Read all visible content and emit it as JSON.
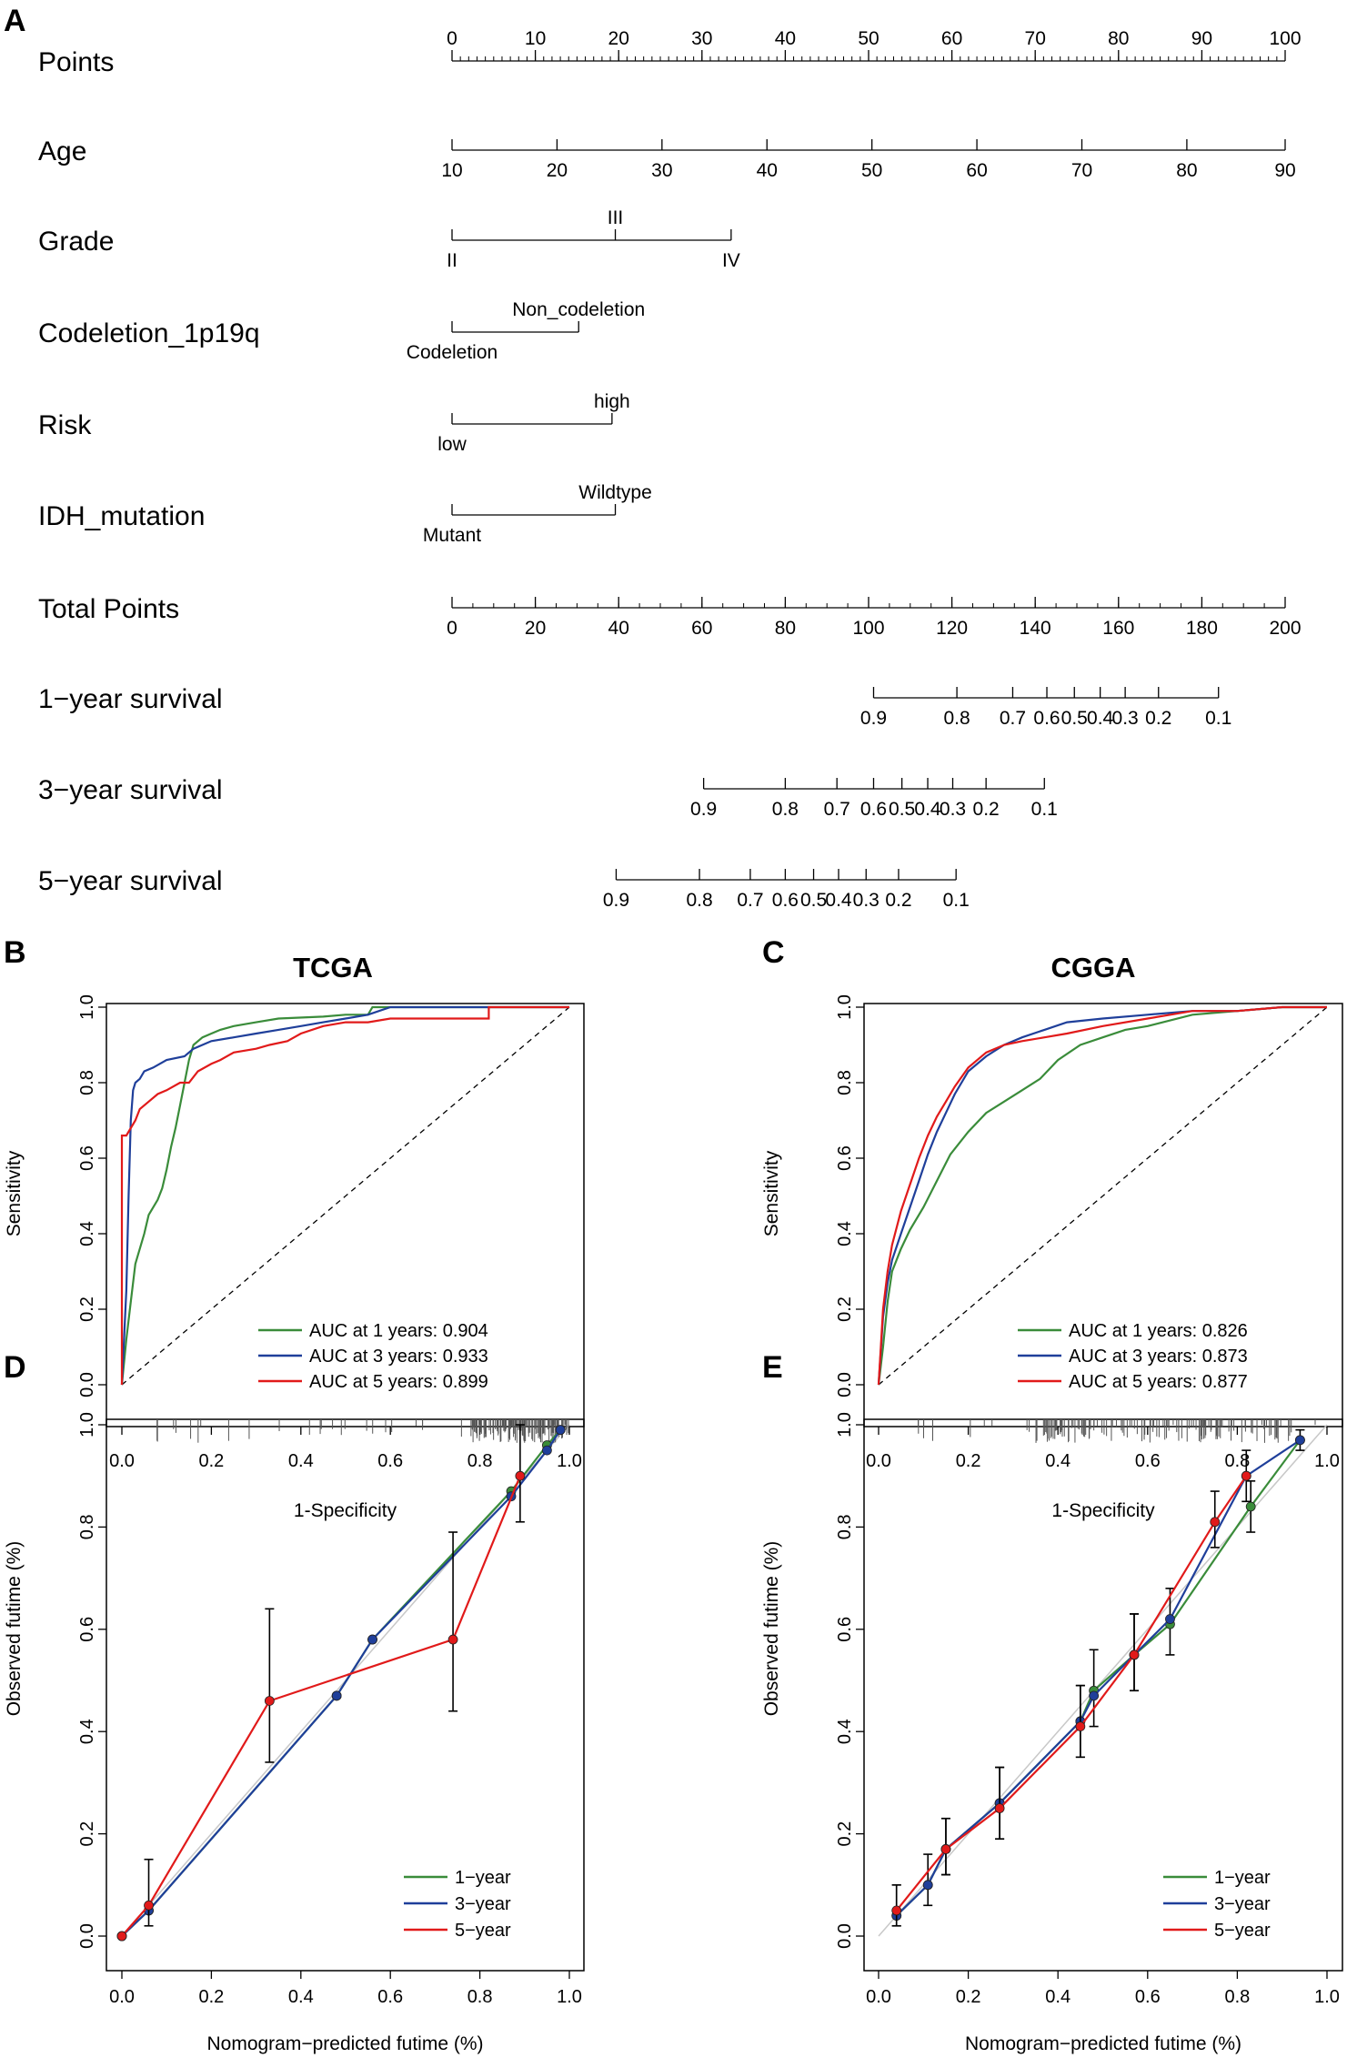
{
  "panels": {
    "A": "A",
    "B": "B",
    "C": "C",
    "D": "D",
    "E": "E"
  },
  "nomogram": {
    "rows": [
      {
        "key": "points",
        "label": "Points",
        "scale": {
          "from": 0,
          "to": 100,
          "step": 10,
          "minor": 1
        },
        "labels_pos": "above",
        "ticks": [
          {
            "label": "0",
            "value": 0
          },
          {
            "label": "10",
            "value": 10
          },
          {
            "label": "20",
            "value": 20
          },
          {
            "label": "30",
            "value": 30
          },
          {
            "label": "40",
            "value": 40
          },
          {
            "label": "50",
            "value": 50
          },
          {
            "label": "60",
            "value": 60
          },
          {
            "label": "70",
            "value": 70
          },
          {
            "label": "80",
            "value": 80
          },
          {
            "label": "90",
            "value": 90
          },
          {
            "label": "100",
            "value": 100
          }
        ]
      },
      {
        "key": "age",
        "label": "Age",
        "scale": {
          "from": 10,
          "to": 90,
          "step": 10,
          "minor": 10
        },
        "labels_pos": "below",
        "ticks": [
          {
            "label": "10",
            "value": 0
          },
          {
            "label": "20",
            "value": 12.6
          },
          {
            "label": "30",
            "value": 25.2
          },
          {
            "label": "40",
            "value": 37.8
          },
          {
            "label": "50",
            "value": 50.4
          },
          {
            "label": "60",
            "value": 63.0
          },
          {
            "label": "70",
            "value": 75.6
          },
          {
            "label": "80",
            "value": 88.2
          },
          {
            "label": "90",
            "value": 100
          }
        ]
      },
      {
        "key": "grade",
        "label": "Grade",
        "categorical": true,
        "ticks": [
          {
            "label": "II",
            "value": 0,
            "pos": "below"
          },
          {
            "label": "III",
            "value": 19.6,
            "pos": "above"
          },
          {
            "label": "IV",
            "value": 33.5,
            "pos": "below"
          }
        ]
      },
      {
        "key": "codeletion",
        "label": "Codeletion_1p19q",
        "categorical": true,
        "ticks": [
          {
            "label": "Codeletion",
            "value": 0,
            "pos": "below"
          },
          {
            "label": "Non_codeletion",
            "value": 15.2,
            "pos": "above"
          }
        ]
      },
      {
        "key": "risk",
        "label": "Risk",
        "categorical": true,
        "ticks": [
          {
            "label": "low",
            "value": 0,
            "pos": "below"
          },
          {
            "label": "high",
            "value": 19.2,
            "pos": "above"
          }
        ]
      },
      {
        "key": "idh",
        "label": "IDH_mutation",
        "categorical": true,
        "ticks": [
          {
            "label": "Mutant",
            "value": 0,
            "pos": "below"
          },
          {
            "label": "Wildtype",
            "value": 19.6,
            "pos": "above"
          }
        ]
      },
      {
        "key": "total",
        "label": "Total Points",
        "scale": {
          "from": 0,
          "to": 200,
          "step": 20,
          "minor": 5
        },
        "labels_pos": "below",
        "ticks": [
          {
            "label": "0",
            "value": 0
          },
          {
            "label": "20",
            "value": 10
          },
          {
            "label": "40",
            "value": 20
          },
          {
            "label": "60",
            "value": 30
          },
          {
            "label": "80",
            "value": 40
          },
          {
            "label": "100",
            "value": 50
          },
          {
            "label": "120",
            "value": 60
          },
          {
            "label": "140",
            "value": 70
          },
          {
            "label": "160",
            "value": 80
          },
          {
            "label": "180",
            "value": 90
          },
          {
            "label": "200",
            "value": 100
          }
        ]
      },
      {
        "key": "surv1",
        "label": "1−year survival",
        "categorical": true,
        "ticks": [
          {
            "label": "0.9",
            "value": 50.6,
            "pos": "below"
          },
          {
            "label": "0.8",
            "value": 60.6,
            "pos": "below"
          },
          {
            "label": "0.7",
            "value": 67.3,
            "pos": "below"
          },
          {
            "label": "0.6",
            "value": 71.4,
            "pos": "below"
          },
          {
            "label": "0.5",
            "value": 74.7,
            "pos": "below"
          },
          {
            "label": "0.4",
            "value": 77.8,
            "pos": "below"
          },
          {
            "label": "0.3",
            "value": 80.8,
            "pos": "below"
          },
          {
            "label": "0.2",
            "value": 84.8,
            "pos": "below"
          },
          {
            "label": "0.1",
            "value": 92.0,
            "pos": "below"
          }
        ]
      },
      {
        "key": "surv3",
        "label": "3−year survival",
        "categorical": true,
        "ticks": [
          {
            "label": "0.9",
            "value": 30.2,
            "pos": "below"
          },
          {
            "label": "0.8",
            "value": 40.0,
            "pos": "below"
          },
          {
            "label": "0.7",
            "value": 46.2,
            "pos": "below"
          },
          {
            "label": "0.6",
            "value": 50.6,
            "pos": "below"
          },
          {
            "label": "0.5",
            "value": 54.0,
            "pos": "below"
          },
          {
            "label": "0.4",
            "value": 57.1,
            "pos": "below"
          },
          {
            "label": "0.3",
            "value": 60.1,
            "pos": "below"
          },
          {
            "label": "0.2",
            "value": 64.1,
            "pos": "below"
          },
          {
            "label": "0.1",
            "value": 71.1,
            "pos": "below"
          }
        ]
      },
      {
        "key": "surv5",
        "label": "5−year survival",
        "categorical": true,
        "ticks": [
          {
            "label": "0.9",
            "value": 19.7,
            "pos": "below"
          },
          {
            "label": "0.8",
            "value": 29.7,
            "pos": "below"
          },
          {
            "label": "0.7",
            "value": 35.8,
            "pos": "below"
          },
          {
            "label": "0.6",
            "value": 40.0,
            "pos": "below"
          },
          {
            "label": "0.5",
            "value": 43.4,
            "pos": "below"
          },
          {
            "label": "0.4",
            "value": 46.4,
            "pos": "below"
          },
          {
            "label": "0.3",
            "value": 49.7,
            "pos": "below"
          },
          {
            "label": "0.2",
            "value": 53.6,
            "pos": "below"
          },
          {
            "label": "0.1",
            "value": 60.5,
            "pos": "below"
          }
        ]
      }
    ]
  },
  "chart_data": [
    {
      "id": "B",
      "type": "line",
      "title": "TCGA",
      "xlabel": "1-Specificity",
      "ylabel": "Sensitivity",
      "xlim": [
        0,
        1
      ],
      "ylim": [
        0,
        1
      ],
      "xticks": [
        "0.0",
        "0.2",
        "0.4",
        "0.6",
        "0.8",
        "1.0"
      ],
      "yticks": [
        "0.0",
        "0.2",
        "0.4",
        "0.6",
        "0.8",
        "1.0"
      ],
      "legend": "bottom-right",
      "diagonal": true,
      "series": [
        {
          "name": "AUC at 1 years: 0.904",
          "color": "#3a8c3a",
          "x": [
            0.0,
            0.01,
            0.02,
            0.03,
            0.05,
            0.06,
            0.08,
            0.09,
            0.1,
            0.11,
            0.12,
            0.13,
            0.14,
            0.15,
            0.16,
            0.18,
            0.2,
            0.22,
            0.25,
            0.3,
            0.35,
            0.45,
            0.5,
            0.55,
            0.56,
            0.6,
            0.8,
            1.0
          ],
          "y": [
            0.0,
            0.12,
            0.22,
            0.32,
            0.4,
            0.45,
            0.49,
            0.52,
            0.57,
            0.63,
            0.68,
            0.74,
            0.8,
            0.86,
            0.9,
            0.92,
            0.93,
            0.94,
            0.95,
            0.96,
            0.97,
            0.975,
            0.98,
            0.98,
            1.0,
            1.0,
            1.0,
            1.0
          ]
        },
        {
          "name": "AUC at 3 years: 0.933",
          "color": "#1f3f9a",
          "x": [
            0.0,
            0.01,
            0.015,
            0.02,
            0.025,
            0.03,
            0.04,
            0.05,
            0.07,
            0.1,
            0.14,
            0.16,
            0.2,
            0.25,
            0.3,
            0.35,
            0.4,
            0.45,
            0.5,
            0.55,
            0.6,
            0.8,
            1.0
          ],
          "y": [
            0.0,
            0.25,
            0.5,
            0.7,
            0.78,
            0.8,
            0.81,
            0.83,
            0.84,
            0.86,
            0.87,
            0.89,
            0.91,
            0.92,
            0.93,
            0.94,
            0.95,
            0.96,
            0.97,
            0.98,
            1.0,
            1.0,
            1.0
          ]
        },
        {
          "name": "AUC at 5 years: 0.899",
          "color": "#e11a1a",
          "x": [
            0.0,
            0.0,
            0.01,
            0.03,
            0.04,
            0.06,
            0.08,
            0.1,
            0.13,
            0.15,
            0.17,
            0.2,
            0.22,
            0.25,
            0.3,
            0.33,
            0.37,
            0.4,
            0.45,
            0.5,
            0.55,
            0.6,
            0.82,
            0.82,
            1.0
          ],
          "y": [
            0.0,
            0.66,
            0.66,
            0.7,
            0.73,
            0.75,
            0.77,
            0.78,
            0.8,
            0.8,
            0.83,
            0.85,
            0.86,
            0.88,
            0.89,
            0.9,
            0.91,
            0.93,
            0.95,
            0.96,
            0.96,
            0.97,
            0.97,
            1.0,
            1.0
          ]
        }
      ]
    },
    {
      "id": "C",
      "type": "line",
      "title": "CGGA",
      "xlabel": "1-Specificity",
      "ylabel": "Sensitivity",
      "xlim": [
        0,
        1
      ],
      "ylim": [
        0,
        1
      ],
      "xticks": [
        "0.0",
        "0.2",
        "0.4",
        "0.6",
        "0.8",
        "1.0"
      ],
      "yticks": [
        "0.0",
        "0.2",
        "0.4",
        "0.6",
        "0.8",
        "1.0"
      ],
      "legend": "bottom-right",
      "diagonal": true,
      "series": [
        {
          "name": "AUC at 1 years: 0.826",
          "color": "#3a8c3a",
          "x": [
            0.0,
            0.01,
            0.02,
            0.03,
            0.05,
            0.07,
            0.1,
            0.13,
            0.16,
            0.2,
            0.24,
            0.28,
            0.32,
            0.36,
            0.4,
            0.45,
            0.5,
            0.55,
            0.6,
            0.7,
            0.8,
            0.9,
            1.0
          ],
          "y": [
            0.0,
            0.1,
            0.22,
            0.3,
            0.36,
            0.41,
            0.47,
            0.54,
            0.61,
            0.67,
            0.72,
            0.75,
            0.78,
            0.81,
            0.86,
            0.9,
            0.92,
            0.94,
            0.95,
            0.98,
            0.99,
            1.0,
            1.0
          ]
        },
        {
          "name": "AUC at 3 years: 0.873",
          "color": "#1f3f9a",
          "x": [
            0.0,
            0.01,
            0.02,
            0.03,
            0.05,
            0.07,
            0.09,
            0.11,
            0.13,
            0.15,
            0.17,
            0.2,
            0.24,
            0.28,
            0.32,
            0.37,
            0.42,
            0.5,
            0.6,
            0.7,
            0.8,
            0.9,
            1.0
          ],
          "y": [
            0.0,
            0.18,
            0.27,
            0.33,
            0.4,
            0.47,
            0.54,
            0.61,
            0.67,
            0.72,
            0.77,
            0.83,
            0.87,
            0.9,
            0.92,
            0.94,
            0.96,
            0.97,
            0.98,
            0.99,
            0.99,
            1.0,
            1.0
          ]
        },
        {
          "name": "AUC at 5 years: 0.877",
          "color": "#e11a1a",
          "x": [
            0.0,
            0.01,
            0.02,
            0.03,
            0.05,
            0.07,
            0.09,
            0.11,
            0.13,
            0.15,
            0.17,
            0.2,
            0.24,
            0.28,
            0.32,
            0.37,
            0.42,
            0.5,
            0.6,
            0.7,
            0.8,
            0.9,
            1.0
          ],
          "y": [
            0.0,
            0.2,
            0.3,
            0.37,
            0.46,
            0.53,
            0.6,
            0.66,
            0.71,
            0.75,
            0.79,
            0.84,
            0.88,
            0.9,
            0.91,
            0.92,
            0.93,
            0.95,
            0.97,
            0.99,
            0.99,
            1.0,
            1.0
          ]
        }
      ]
    },
    {
      "id": "D",
      "type": "line",
      "xlabel": "Nomogram−predicted futime (%)",
      "ylabel": "Observed futime (%)",
      "xlim": [
        0,
        1
      ],
      "ylim": [
        0,
        1
      ],
      "xticks": [
        "0.0",
        "0.2",
        "0.4",
        "0.6",
        "0.8",
        "1.0"
      ],
      "yticks": [
        "0.0",
        "0.2",
        "0.4",
        "0.6",
        "0.8",
        "1.0"
      ],
      "legend": "bottom-right",
      "rug": true,
      "ideal": true,
      "series": [
        {
          "name": "1−year",
          "color": "#3a8c3a",
          "x": [
            0.0,
            0.06,
            0.48,
            0.56,
            0.87,
            0.95,
            0.98
          ],
          "y": [
            0.0,
            0.05,
            0.47,
            0.58,
            0.87,
            0.96,
            0.99
          ]
        },
        {
          "name": "3−year",
          "color": "#1f3f9a",
          "x": [
            0.0,
            0.06,
            0.48,
            0.56,
            0.87,
            0.95,
            0.98
          ],
          "y": [
            0.0,
            0.05,
            0.47,
            0.58,
            0.86,
            0.95,
            0.99
          ]
        },
        {
          "name": "5−year",
          "color": "#e11a1a",
          "x": [
            0.0,
            0.06,
            0.33,
            0.74,
            0.89
          ],
          "y": [
            0.0,
            0.06,
            0.46,
            0.58,
            0.9
          ],
          "err_low": [
            0.0,
            0.02,
            0.34,
            0.44,
            0.81
          ],
          "err_high": [
            0.0,
            0.15,
            0.64,
            0.79,
            1.0
          ]
        }
      ]
    },
    {
      "id": "E",
      "type": "line",
      "xlabel": "Nomogram−predicted futime (%)",
      "ylabel": "Observed futime (%)",
      "xlim": [
        0,
        1
      ],
      "ylim": [
        0,
        1
      ],
      "xticks": [
        "0.0",
        "0.2",
        "0.4",
        "0.6",
        "0.8",
        "1.0"
      ],
      "yticks": [
        "0.0",
        "0.2",
        "0.4",
        "0.6",
        "0.8",
        "1.0"
      ],
      "legend": "bottom-right",
      "rug": true,
      "ideal": true,
      "series": [
        {
          "name": "1−year",
          "color": "#3a8c3a",
          "x": [
            0.04,
            0.11,
            0.15,
            0.27,
            0.45,
            0.48,
            0.57,
            0.65,
            0.83,
            0.94
          ],
          "y": [
            0.04,
            0.1,
            0.17,
            0.26,
            0.42,
            0.48,
            0.55,
            0.61,
            0.84,
            0.97
          ],
          "err_low": [
            0.02,
            0.06,
            0.12,
            0.19,
            0.35,
            0.41,
            0.48,
            0.55,
            0.79,
            0.95
          ],
          "err_high": [
            0.1,
            0.16,
            0.23,
            0.33,
            0.49,
            0.56,
            0.63,
            0.68,
            0.89,
            0.99
          ]
        },
        {
          "name": "3−year",
          "color": "#1f3f9a",
          "x": [
            0.04,
            0.11,
            0.15,
            0.27,
            0.45,
            0.48,
            0.57,
            0.65,
            0.82,
            0.94
          ],
          "y": [
            0.04,
            0.1,
            0.17,
            0.26,
            0.42,
            0.47,
            0.55,
            0.62,
            0.9,
            0.97
          ]
        },
        {
          "name": "5−year",
          "color": "#e11a1a",
          "x": [
            0.04,
            0.15,
            0.27,
            0.45,
            0.57,
            0.75,
            0.82
          ],
          "y": [
            0.05,
            0.17,
            0.25,
            0.41,
            0.55,
            0.81,
            0.9
          ],
          "err_low": [
            0.02,
            0.12,
            0.19,
            0.35,
            0.48,
            0.76,
            0.85
          ],
          "err_high": [
            0.1,
            0.23,
            0.33,
            0.49,
            0.63,
            0.87,
            0.95
          ]
        }
      ]
    }
  ]
}
